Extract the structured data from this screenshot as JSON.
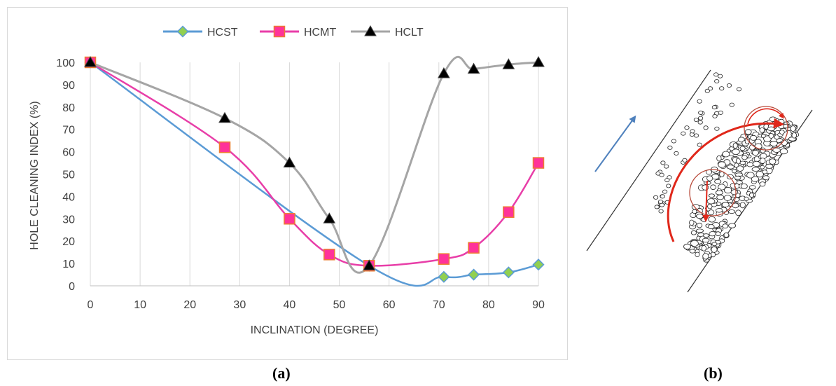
{
  "captions": {
    "a": "(a)",
    "b": "(b)"
  },
  "chart_data": {
    "type": "line",
    "xlabel": "INCLINATION (DEGREE)",
    "ylabel": "HOLE CLEANING INDEX (%)",
    "xlim": [
      0,
      90
    ],
    "ylim": [
      0,
      100
    ],
    "xticks": [
      0,
      10,
      20,
      30,
      40,
      50,
      60,
      70,
      80,
      90
    ],
    "yticks": [
      0,
      10,
      20,
      30,
      40,
      50,
      60,
      70,
      80,
      90,
      100
    ],
    "grid": "vertical",
    "legend": "top-center",
    "series": [
      {
        "name": "HCST",
        "color": "#5b9bd5",
        "marker": "diamond",
        "marker_color": "#92d050",
        "x": [
          0,
          56,
          71,
          77,
          84,
          90
        ],
        "y": [
          100,
          9,
          4,
          5,
          6,
          9.5
        ]
      },
      {
        "name": "HCMT",
        "color": "#e83ea8",
        "marker": "square",
        "marker_color": "#ff3399",
        "x": [
          0,
          27,
          40,
          48,
          56,
          71,
          77,
          84,
          90
        ],
        "y": [
          100,
          62,
          30,
          14,
          9,
          12,
          17,
          33,
          55
        ]
      },
      {
        "name": "HCLT",
        "color": "#a5a5a5",
        "marker": "triangle",
        "marker_color": "#000000",
        "x": [
          0,
          27,
          40,
          48,
          56,
          71,
          77,
          84,
          90
        ],
        "y": [
          100,
          75,
          55,
          30,
          9,
          95,
          97,
          99,
          100
        ]
      }
    ]
  },
  "diagram": {
    "flow_arrow_color": "#4f81bd",
    "circulation_color": "#e0271a"
  }
}
